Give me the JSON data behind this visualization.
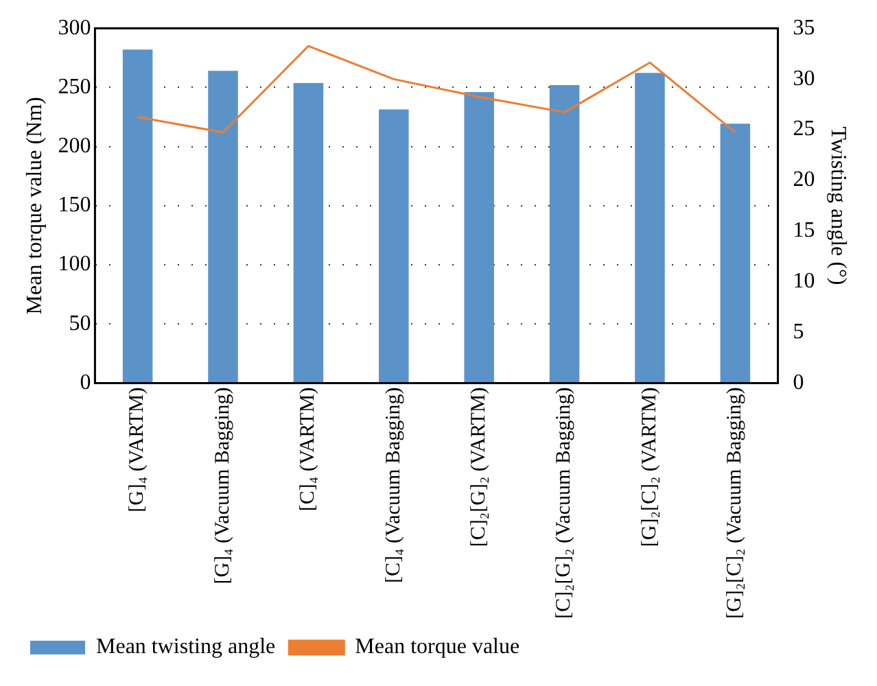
{
  "chart_data": {
    "type": "bar",
    "ylabel": "Mean torque value (Nm)",
    "y2label": "Twisting angle (°)",
    "categories": [
      "[G]₄ (VARTM)",
      "[G]₄ (Vacuum Bagging)",
      "[C]₄ (VARTM)",
      "[C]₄ (Vacuum Bagging)",
      "[C]₂[G]₂ (VARTM)",
      "[C]₂[G]₂ (Vacuum Bagging)",
      "[G]₂[C]₂ (VARTM)",
      "[G]₂[C]₂ (Vacuum Bagging)"
    ],
    "series": [
      {
        "name": "Mean twisting angle",
        "axis": "y2",
        "color": "#5b93c9",
        "values": [
          32.9,
          30.8,
          29.6,
          27.0,
          28.7,
          29.4,
          30.6,
          25.6
        ]
      },
      {
        "name": "Mean torque value",
        "type": "line",
        "axis": "y",
        "color": "#ed7d31",
        "values": [
          225,
          212,
          285,
          257,
          242,
          229,
          271,
          212
        ]
      }
    ],
    "ylim": [
      0,
      300
    ],
    "yticks": [
      0,
      50,
      100,
      150,
      200,
      250,
      300
    ],
    "y2lim": [
      0,
      35
    ],
    "y2ticks": [
      0,
      5,
      10,
      15,
      20,
      25,
      30,
      35
    ],
    "grid": "y",
    "legend": "bottom",
    "marker": "none",
    "line_style": "solid"
  }
}
